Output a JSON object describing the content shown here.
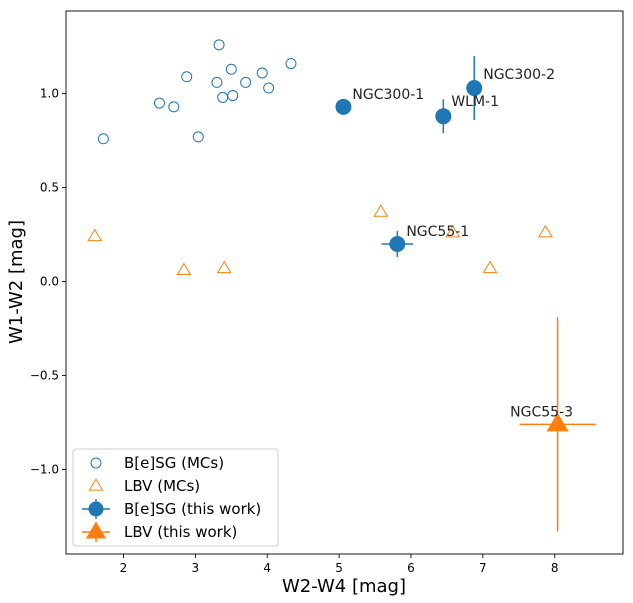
{
  "chart_data": {
    "type": "scatter",
    "title": "",
    "xlabel": "W2-W4 [mag]",
    "ylabel": "W1-W2 [mag]",
    "xlim": [
      1.2,
      8.95
    ],
    "ylim": [
      -1.45,
      1.44
    ],
    "xticks": [
      2,
      3,
      4,
      5,
      6,
      7,
      8
    ],
    "xtick_labels": [
      "2",
      "3",
      "4",
      "5",
      "6",
      "7",
      "8"
    ],
    "yticks": [
      -1.0,
      -0.5,
      0.0,
      0.5,
      1.0
    ],
    "ytick_labels": [
      "−1.0",
      "−0.5",
      "0.0",
      "0.5",
      "1.0"
    ],
    "legend_position": "lower-left",
    "series": [
      {
        "name": "B[e]SG (MCs)",
        "marker": "open-circle",
        "color": "#1f77b4",
        "points": [
          {
            "x": 1.72,
            "y": 0.76
          },
          {
            "x": 2.5,
            "y": 0.95
          },
          {
            "x": 2.7,
            "y": 0.93
          },
          {
            "x": 2.88,
            "y": 1.09
          },
          {
            "x": 3.04,
            "y": 0.77
          },
          {
            "x": 3.3,
            "y": 1.06
          },
          {
            "x": 3.33,
            "y": 1.26
          },
          {
            "x": 3.38,
            "y": 0.98
          },
          {
            "x": 3.5,
            "y": 1.13
          },
          {
            "x": 3.52,
            "y": 0.99
          },
          {
            "x": 3.7,
            "y": 1.06
          },
          {
            "x": 3.93,
            "y": 1.11
          },
          {
            "x": 4.02,
            "y": 1.03
          },
          {
            "x": 4.33,
            "y": 1.16
          }
        ]
      },
      {
        "name": "LBV (MCs)",
        "marker": "open-triangle",
        "color": "#ff7f0e",
        "points": [
          {
            "x": 1.6,
            "y": 0.24
          },
          {
            "x": 2.84,
            "y": 0.06
          },
          {
            "x": 3.4,
            "y": 0.07
          },
          {
            "x": 5.58,
            "y": 0.37
          },
          {
            "x": 6.58,
            "y": 0.26
          },
          {
            "x": 7.1,
            "y": 0.07
          },
          {
            "x": 7.87,
            "y": 0.26
          }
        ]
      },
      {
        "name": "B[e]SG (this work)",
        "marker": "filled-circle",
        "color": "#1f77b4",
        "points": [
          {
            "x": 5.06,
            "y": 0.93,
            "xerr": 0.05,
            "yerr": 0.03,
            "label": "NGC300-1"
          },
          {
            "x": 6.88,
            "y": 1.03,
            "xerr": 0.05,
            "yerr": 0.17,
            "label": "NGC300-2"
          },
          {
            "x": 6.45,
            "y": 0.88,
            "xerr": 0.05,
            "yerr": 0.09,
            "label": "WLM-1"
          },
          {
            "x": 5.81,
            "y": 0.2,
            "xerr": 0.22,
            "yerr": 0.07,
            "label": "NGC55-1"
          }
        ]
      },
      {
        "name": "LBV (this work)",
        "marker": "filled-triangle",
        "color": "#ff7f0e",
        "points": [
          {
            "x": 8.04,
            "y": -0.76,
            "xerr": 0.53,
            "yerr": 0.57,
            "label": "NGC55-3"
          }
        ]
      }
    ]
  }
}
